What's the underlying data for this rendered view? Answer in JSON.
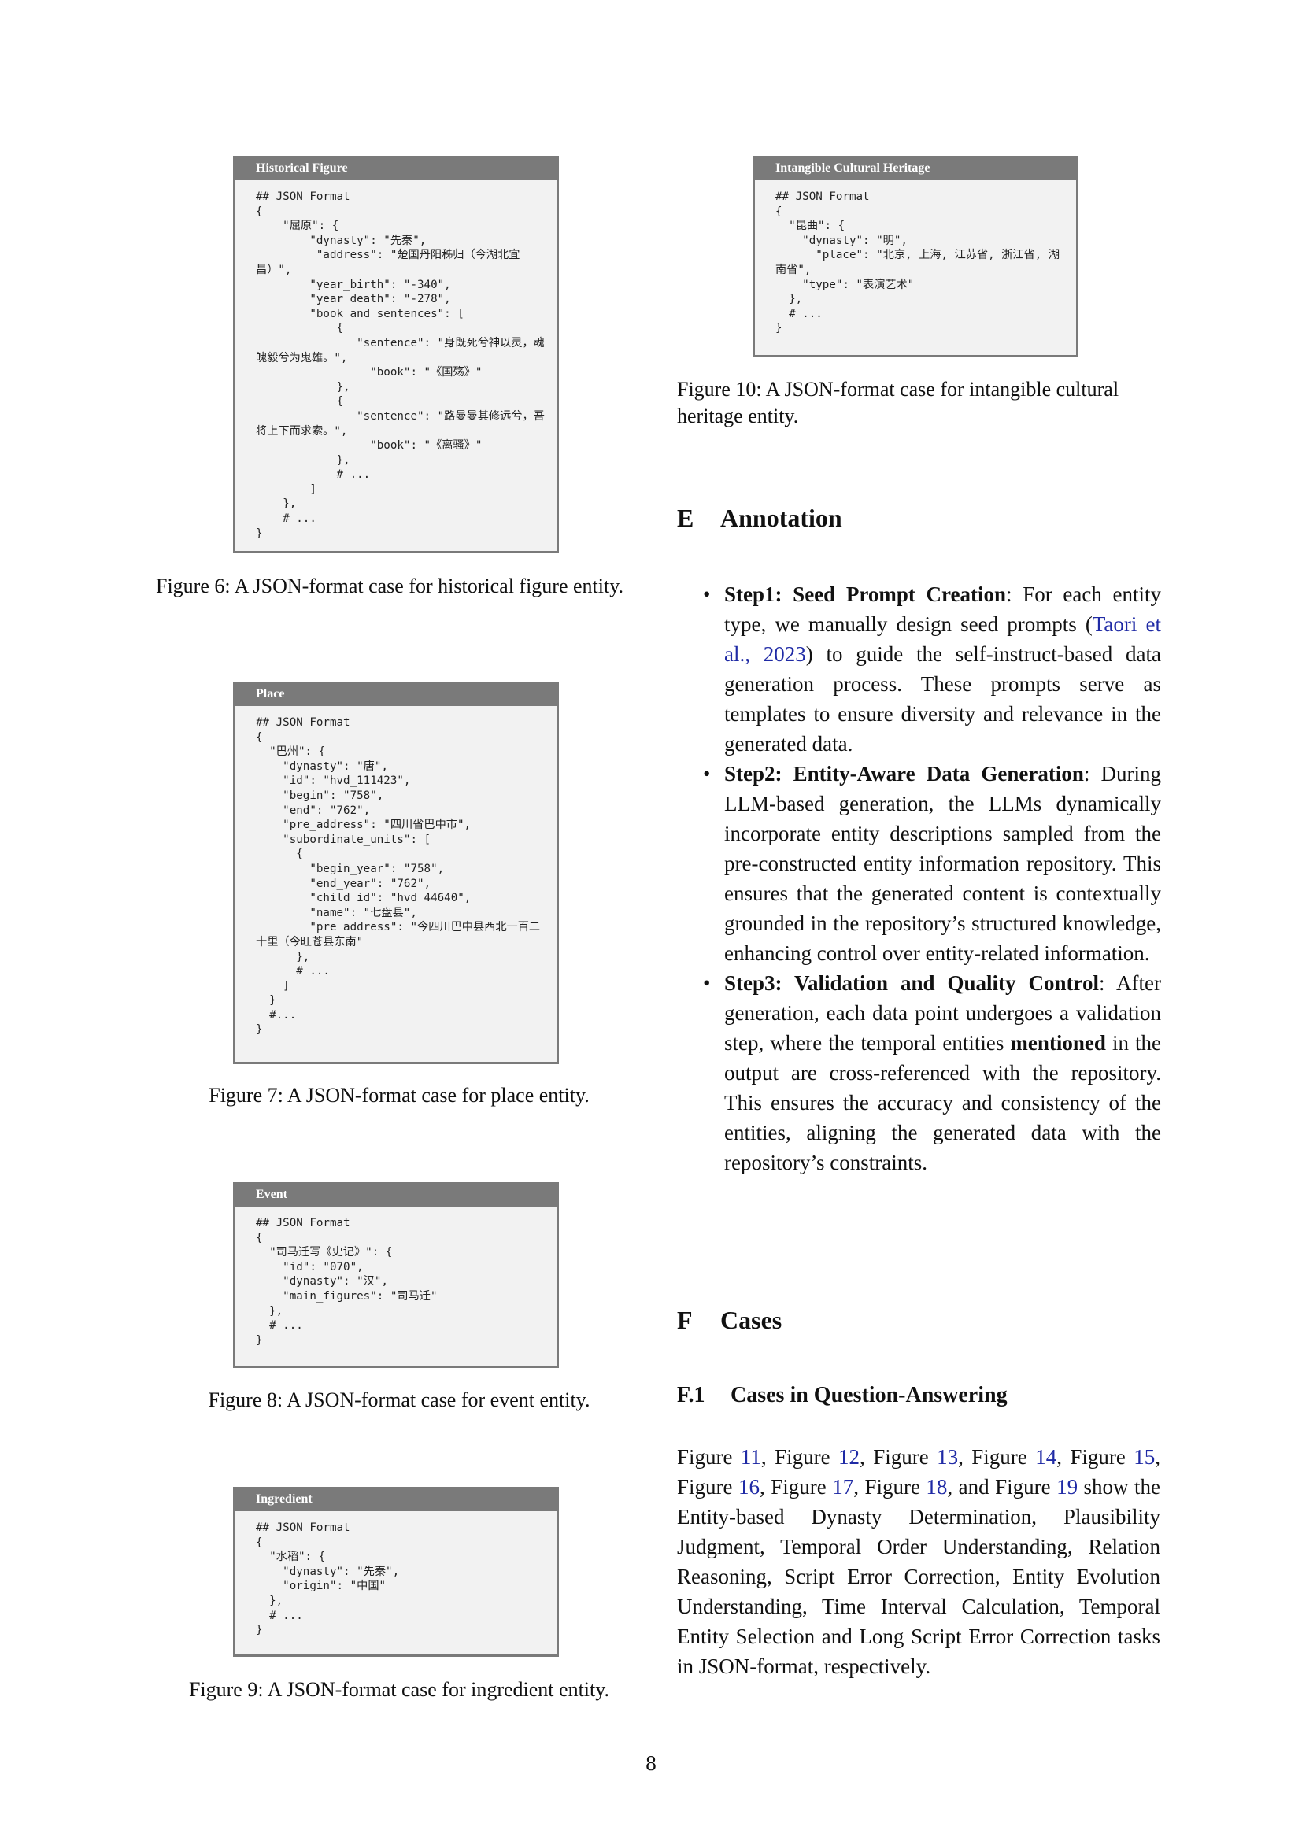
{
  "figures": [
    {
      "box_title": "Historical Figure",
      "code": "## JSON Format\n{\n    \"屈原\": {\n        \"dynasty\": \"先秦\",\n         \"address\": \"楚国丹阳秭归（今湖北宜昌）\",\n        \"year_birth\": \"-340\",\n        \"year_death\": \"-278\",\n        \"book_and_sentences\": [\n            {\n               \"sentence\": \"身既死兮神以灵，魂魄毅兮为鬼雄。\",\n                 \"book\": \"《国殇》\"\n            },\n            {\n               \"sentence\": \"路曼曼其修远兮，吾将上下而求索。\",\n                 \"book\": \"《离骚》\"\n            },\n            # ...\n        ]\n    },\n    # ...\n}",
      "caption": "Figure 6: A JSON-format case for historical figure entity."
    },
    {
      "box_title": "Place",
      "code": "## JSON Format\n{\n  \"巴州\": {\n    \"dynasty\": \"唐\",\n    \"id\": \"hvd_111423\",\n    \"begin\": \"758\",\n    \"end\": \"762\",\n    \"pre_address\": \"四川省巴中市\",\n    \"subordinate_units\": [\n      {\n        \"begin_year\": \"758\",\n        \"end_year\": \"762\",\n        \"child_id\": \"hvd_44640\",\n        \"name\": \"七盘县\",\n        \"pre_address\": \"今四川巴中县西北一百二十里（今旺苍县东南\"\n      },\n      # ...\n    ]\n  }\n  #...\n}",
      "caption": "Figure 7: A JSON-format case for place entity."
    },
    {
      "box_title": "Event",
      "code": "## JSON Format\n{\n  \"司马迁写《史记》\": {\n    \"id\": \"070\",\n    \"dynasty\": \"汉\",\n    \"main_figures\": \"司马迁\"\n  },\n  # ...\n}",
      "caption": "Figure 8: A JSON-format case for event entity."
    },
    {
      "box_title": "Ingredient",
      "code": "## JSON Format\n{\n  \"水稻\": {\n    \"dynasty\": \"先秦\",\n    \"origin\": \"中国\"\n  },\n  # ...\n}",
      "caption": "Figure 9: A JSON-format case for ingredient entity."
    },
    {
      "box_title": "Intangible Cultural Heritage",
      "code": "## JSON Format\n{\n  \"昆曲\": {\n    \"dynasty\": \"明\",\n      \"place\": \"北京, 上海, 江苏省, 浙江省, 湖南省\",\n    \"type\": \"表演艺术\"\n  },\n  # ...\n}",
      "caption": "Figure 10: A JSON-format case for intangible cultural heritage entity."
    }
  ],
  "section_e": {
    "number": "E",
    "title": "Annotation",
    "steps": [
      {
        "title": "Step1:  Seed Prompt Creation",
        "before_link": ": For each entity type, we manually design seed prompts (",
        "link": "Taori et al., 2023",
        "after_link": ") to guide the self-instruct-based data generation process. These prompts serve as templates to ensure diversity and relevance in the generated data."
      },
      {
        "title": "Step2: Entity-Aware Data Generation",
        "text": ": During LLM-based generation, the LLMs dynamically incorporate entity descriptions sampled from the pre-constructed entity information repository.  This ensures that the generated content is contextually grounded in the repository’s structured knowledge, enhancing control over entity-related information."
      },
      {
        "title": "Step3: Validation and Quality Control",
        "text_a": ": After generation, each data point undergoes a validation step, where the temporal entities ",
        "bold": "mentioned",
        "text_b": " in the output are cross-referenced with the repository.  This ensures the accuracy and consistency of the entities, aligning the generated data with the repository’s constraints."
      }
    ]
  },
  "section_f": {
    "number": "F",
    "title": "Cases",
    "sub_number": "F.1",
    "sub_title": "Cases in Question-Answering",
    "para": {
      "w_fig": "Figure ",
      "comma": ", ",
      "and_fig": ", and Figure ",
      "refs": [
        "11",
        "12",
        "13",
        "14",
        "15",
        "16",
        "17",
        "18",
        "19"
      ],
      "rest": " show the Entity-based Dynasty Determination, Plausibility Judgment, Temporal Order Understanding, Relation Reasoning, Script Error Correction, Entity Evolution Understanding, Time Interval Calculation, Temporal Entity Selection and Long Script Error Correction tasks in JSON-format, respectively."
    }
  },
  "page_number": "8"
}
